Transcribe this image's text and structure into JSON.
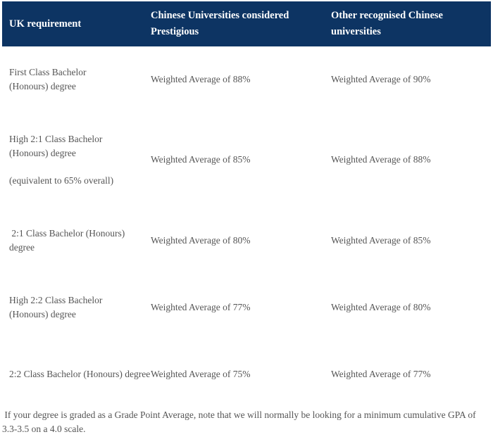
{
  "table": {
    "headers": [
      "UK requirement",
      "Chinese Universities considered Prestigious",
      "Other recognised Chinese universities"
    ],
    "rows": [
      {
        "uk": [
          "First Class Bachelor (Honours) degree"
        ],
        "prestigious": "Weighted Average of 88%",
        "other": "Weighted Average of 90%"
      },
      {
        "uk": [
          "High 2:1 Class Bachelor (Honours) degree",
          "(equivalent to 65% overall)"
        ],
        "prestigious": "Weighted Average of 85%",
        "other": "Weighted Average of 88%"
      },
      {
        "uk": [
          " 2:1 Class Bachelor (Honours) degree"
        ],
        "prestigious": "Weighted Average of 80%",
        "other": "Weighted Average of 85%"
      },
      {
        "uk": [
          "High 2:2 Class Bachelor (Honours) degree"
        ],
        "prestigious": "Weighted Average of 77%",
        "other": "Weighted Average of 80%"
      },
      {
        "uk": [
          "2:2 Class Bachelor (Honours) degree"
        ],
        "prestigious": "Weighted Average of 75%",
        "other": "Weighted Average of 77%"
      }
    ]
  },
  "note": " If your degree is graded as a Grade Point Average, note that we will normally be looking for a minimum cumulative GPA of 3.3-3.5 on a 4.0 scale.",
  "colors": {
    "header_bg": "#0d3463",
    "text": "#555555"
  }
}
